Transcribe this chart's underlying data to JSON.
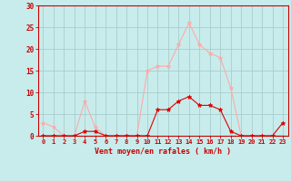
{
  "x": [
    0,
    1,
    2,
    3,
    4,
    5,
    6,
    7,
    8,
    9,
    10,
    11,
    12,
    13,
    14,
    15,
    16,
    17,
    18,
    19,
    20,
    21,
    22,
    23
  ],
  "wind_avg": [
    0,
    0,
    0,
    0,
    1,
    1,
    0,
    0,
    0,
    0,
    0,
    6,
    6,
    8,
    9,
    7,
    7,
    6,
    1,
    0,
    0,
    0,
    0,
    3
  ],
  "wind_gust": [
    3,
    2,
    0,
    0,
    8,
    2,
    0,
    0,
    0,
    0,
    15,
    16,
    16,
    21,
    26,
    21,
    19,
    18,
    11,
    0,
    0,
    0,
    0,
    0
  ],
  "avg_color": "#dd0000",
  "gust_color": "#ffaaaa",
  "bg_color": "#c8ecec",
  "grid_color": "#aacccc",
  "axis_color": "#cc0000",
  "xlabel": "Vent moyen/en rafales ( km/h )",
  "ylim": [
    0,
    30
  ],
  "xlim": [
    -0.5,
    23.5
  ],
  "yticks": [
    0,
    5,
    10,
    15,
    20,
    25,
    30
  ],
  "xticks": [
    0,
    1,
    2,
    3,
    4,
    5,
    6,
    7,
    8,
    9,
    10,
    11,
    12,
    13,
    14,
    15,
    16,
    17,
    18,
    19,
    20,
    21,
    22,
    23
  ],
  "marker": "*",
  "markersize": 3.5,
  "linewidth": 0.8
}
